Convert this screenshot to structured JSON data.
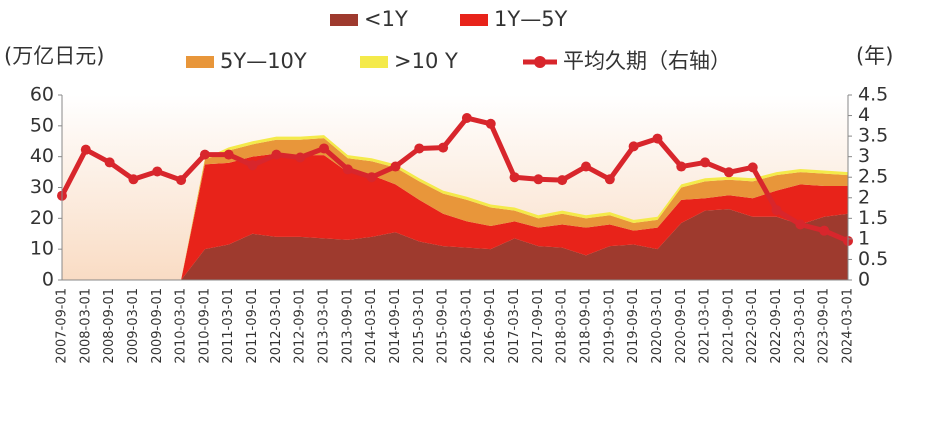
{
  "chart_data": {
    "type": "stacked-area-line",
    "y_label": "(万亿日元)",
    "y2_label": "(年)",
    "categories": [
      "2007-09-01",
      "2008-03-01",
      "2008-09-01",
      "2009-03-01",
      "2009-09-01",
      "2010-03-01",
      "2010-09-01",
      "2011-03-01",
      "2011-09-01",
      "2012-03-01",
      "2012-09-01",
      "2013-03-01",
      "2013-09-01",
      "2014-03-01",
      "2014-09-01",
      "2015-03-01",
      "2015-09-01",
      "2016-03-01",
      "2016-09-01",
      "2017-03-01",
      "2017-09-01",
      "2018-03-01",
      "2018-09-01",
      "2019-03-01",
      "2019-09-01",
      "2020-03-01",
      "2020-09-01",
      "2021-03-01",
      "2021-09-01",
      "2022-03-01",
      "2022-09-01",
      "2023-03-01",
      "2023-09-01",
      "2024-03-01"
    ],
    "series": [
      {
        "name": "<1Y",
        "color": "#9e3a2e",
        "values": [
          0,
          0,
          0,
          0,
          0,
          0,
          10,
          11.5,
          15,
          14,
          14,
          13.5,
          13,
          14,
          15.5,
          12.5,
          11,
          10.5,
          10,
          13.5,
          11,
          10.5,
          8,
          11,
          11.5,
          10,
          18.5,
          22.5,
          23,
          20.5,
          20.5,
          18,
          20.5,
          21.5
        ]
      },
      {
        "name": "1Y—5Y",
        "color": "#e8231a",
        "values": [
          0,
          0,
          0,
          0,
          0,
          0,
          27.5,
          26.5,
          25,
          27,
          26.5,
          27,
          22,
          20,
          15.5,
          13.5,
          10.5,
          8.5,
          7.5,
          5.5,
          6,
          7.5,
          9,
          7,
          4.5,
          7,
          7.5,
          4,
          4.5,
          6,
          8.5,
          13,
          10,
          9
        ]
      },
      {
        "name": "5Y—10Y",
        "color": "#e8963a",
        "values": [
          0,
          0,
          0,
          0,
          0,
          0,
          1.5,
          4,
          4,
          4.5,
          5,
          5.5,
          4.5,
          4.5,
          5.5,
          6,
          6.5,
          7,
          6,
          3.5,
          3,
          3.5,
          3,
          3,
          2.5,
          2.5,
          4,
          5.5,
          5,
          5.5,
          5,
          4,
          4,
          3.5
        ]
      },
      {
        "name": ">10 Y",
        "color": "#f4ea4a",
        "values": [
          0,
          0,
          0,
          0,
          0,
          0,
          0.5,
          1,
          1,
          1,
          1,
          1,
          1,
          1,
          1,
          1,
          1,
          1,
          1,
          1,
          1,
          1,
          1,
          1,
          1,
          1,
          1,
          1,
          1,
          1,
          1,
          1,
          1,
          1
        ]
      },
      {
        "name": "平均久期（右轴）",
        "color": "#d8262c",
        "axis": "y2",
        "values": [
          2.05,
          3.17,
          2.86,
          2.45,
          2.64,
          2.43,
          3.05,
          3.05,
          2.79,
          3.05,
          2.98,
          3.2,
          2.69,
          2.5,
          2.76,
          3.2,
          3.22,
          3.94,
          3.8,
          2.5,
          2.45,
          2.43,
          2.76,
          2.45,
          3.25,
          3.44,
          2.76,
          2.86,
          2.62,
          2.74,
          1.7,
          1.35,
          1.2,
          0.95
        ]
      }
    ],
    "ylim": [
      0,
      60
    ],
    "yticks": [
      0,
      10,
      20,
      30,
      40,
      50,
      60
    ],
    "y2lim": [
      0,
      4.5
    ],
    "y2ticks": [
      0,
      0.5,
      1,
      1.5,
      2,
      2.5,
      3,
      3.5,
      4,
      4.5
    ],
    "legend": "top"
  }
}
